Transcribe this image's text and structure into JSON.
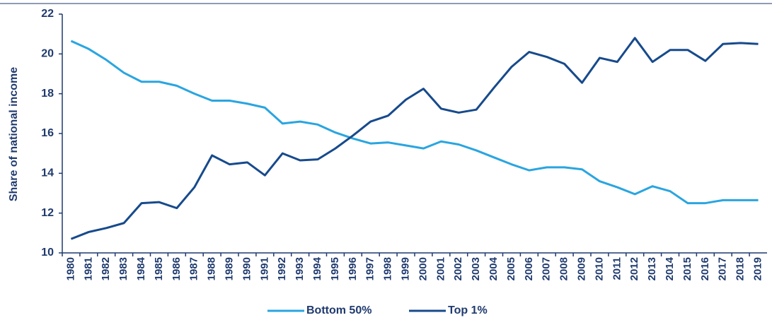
{
  "chart_data": {
    "type": "line",
    "y_label": "Share of national income",
    "categories": [
      "1980",
      "1981",
      "1982",
      "1983",
      "1984",
      "1985",
      "1986",
      "1987",
      "1988",
      "1989",
      "1990",
      "1991",
      "1992",
      "1993",
      "1994",
      "1995",
      "1996",
      "1997",
      "1998",
      "1999",
      "2000",
      "2001",
      "2002",
      "2003",
      "2004",
      "2005",
      "2006",
      "2007",
      "2008",
      "2009",
      "2010",
      "2011",
      "2012",
      "2013",
      "2014",
      "2015",
      "2016",
      "2017",
      "2018",
      "2019"
    ],
    "series": [
      {
        "name": "Bottom 50%",
        "color": "#2aa5e0",
        "values": [
          20.65,
          20.25,
          19.7,
          19.05,
          18.6,
          18.6,
          18.4,
          18.0,
          17.65,
          17.65,
          17.5,
          17.3,
          16.5,
          16.6,
          16.45,
          16.05,
          15.75,
          15.5,
          15.55,
          15.4,
          15.25,
          15.6,
          15.45,
          15.15,
          14.8,
          14.45,
          14.15,
          14.3,
          14.3,
          14.2,
          13.6,
          13.3,
          12.95,
          13.35,
          13.1,
          12.5,
          12.5,
          12.65,
          12.65,
          12.65
        ]
      },
      {
        "name": "Top 1%",
        "color": "#174a8c",
        "values": [
          10.7,
          11.05,
          11.25,
          11.5,
          12.5,
          12.55,
          12.25,
          13.3,
          14.9,
          14.45,
          14.55,
          13.9,
          15.0,
          14.65,
          14.7,
          15.25,
          15.9,
          16.6,
          16.9,
          17.7,
          18.25,
          17.25,
          17.05,
          17.2,
          18.3,
          19.35,
          20.1,
          19.85,
          19.5,
          18.55,
          19.8,
          19.6,
          20.8,
          19.6,
          20.2,
          20.2,
          19.65,
          20.5,
          20.55,
          20.5
        ]
      }
    ],
    "ylim": [
      10,
      22
    ],
    "yticks": [
      10,
      12,
      14,
      16,
      18,
      20,
      22
    ],
    "legend": "bottom"
  }
}
